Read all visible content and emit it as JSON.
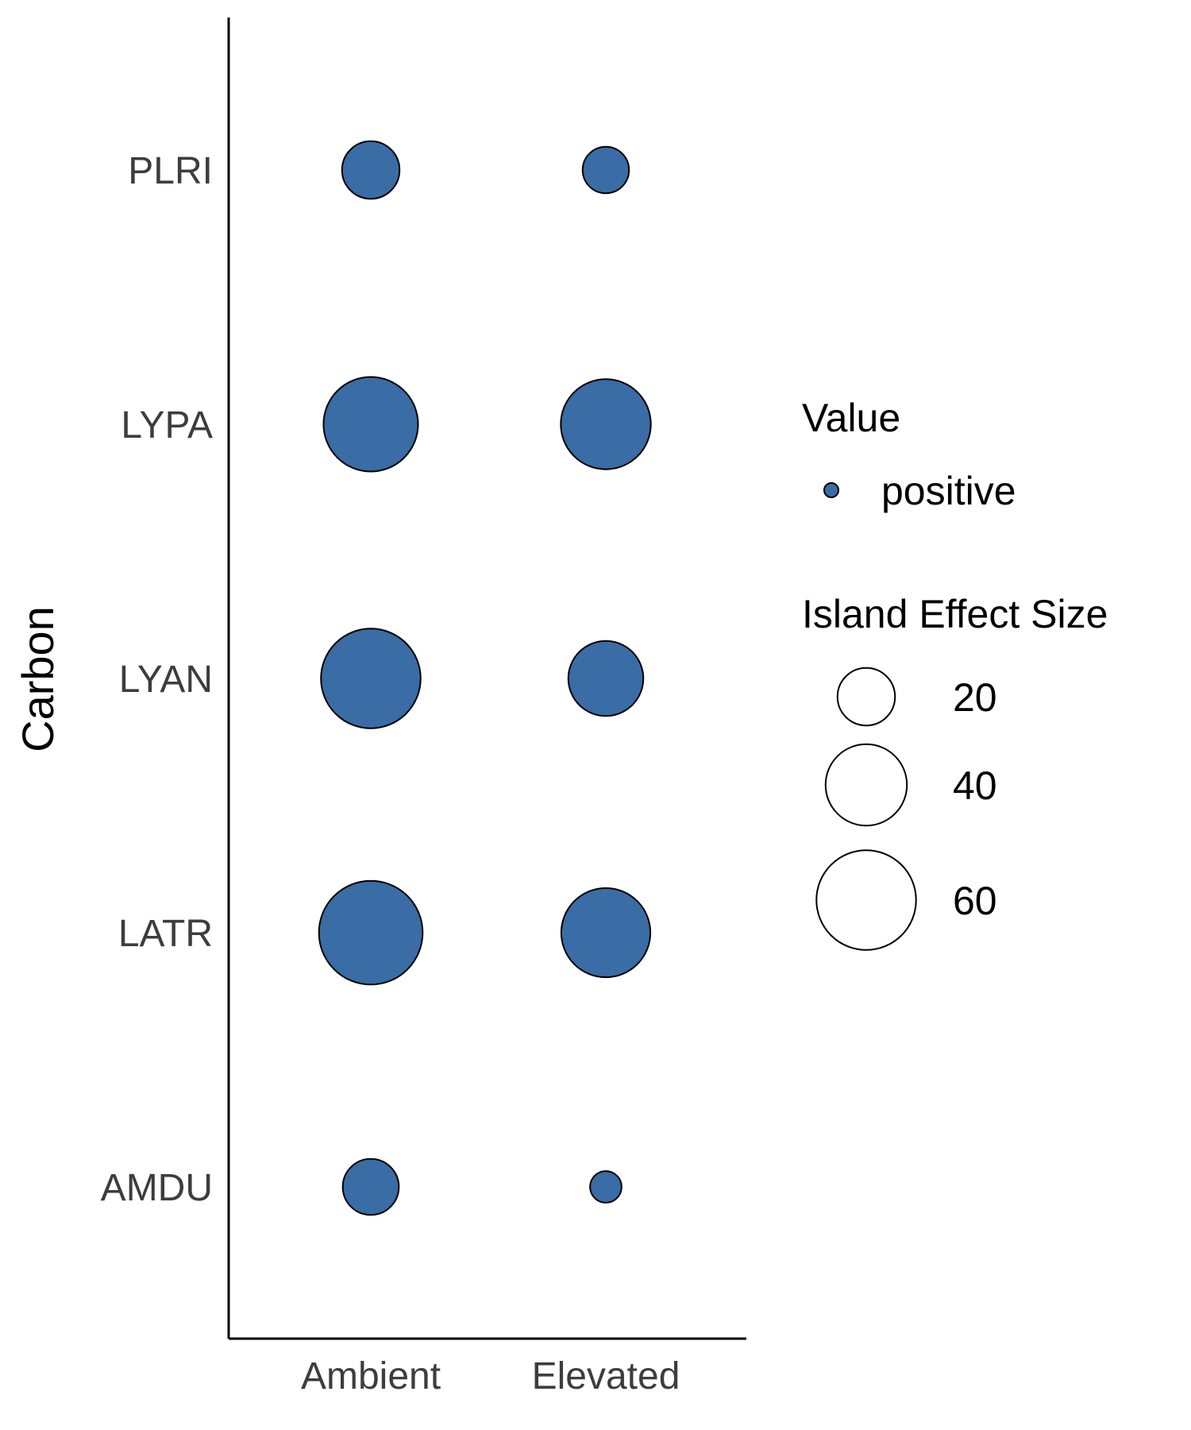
{
  "chart_data": {
    "type": "scatter",
    "xlabel": "",
    "ylabel": "Carbon",
    "x_categories": [
      "Ambient",
      "Elevated"
    ],
    "y_categories": [
      "PLRI",
      "LYPA",
      "LYAN",
      "LATR",
      "AMDU"
    ],
    "points": [
      {
        "x": "Ambient",
        "y": "PLRI",
        "size": 20,
        "value": "positive"
      },
      {
        "x": "Elevated",
        "y": "PLRI",
        "size": 13,
        "value": "positive"
      },
      {
        "x": "Ambient",
        "y": "LYPA",
        "size": 54,
        "value": "positive"
      },
      {
        "x": "Elevated",
        "y": "LYPA",
        "size": 49,
        "value": "positive"
      },
      {
        "x": "Ambient",
        "y": "LYAN",
        "size": 60,
        "value": "positive"
      },
      {
        "x": "Elevated",
        "y": "LYAN",
        "size": 34,
        "value": "positive"
      },
      {
        "x": "Ambient",
        "y": "LATR",
        "size": 65,
        "value": "positive"
      },
      {
        "x": "Elevated",
        "y": "LATR",
        "size": 48,
        "value": "positive"
      },
      {
        "x": "Ambient",
        "y": "AMDU",
        "size": 19,
        "value": "positive"
      },
      {
        "x": "Elevated",
        "y": "AMDU",
        "size": 6,
        "value": "positive"
      }
    ],
    "legend_color": {
      "title": "Value",
      "entries": [
        {
          "label": "positive",
          "color": "#3a6ca5"
        }
      ]
    },
    "legend_size": {
      "title": "Island Effect Size",
      "breaks": [
        20,
        40,
        60
      ],
      "labels": [
        "20",
        "40",
        "60"
      ]
    },
    "legend_position": "right",
    "grid": false,
    "point_color": "#3a6ca5"
  }
}
